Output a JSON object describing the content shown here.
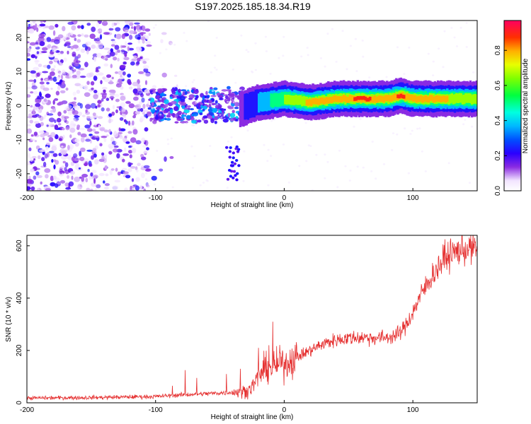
{
  "title": "S197.2025.185.18.34.R19",
  "chart_data": [
    {
      "type": "heatmap",
      "xlabel": "Height of straight line (km)",
      "ylabel": "Frequency (Hz)",
      "xlim": [
        -200,
        150
      ],
      "ylim": [
        -25,
        25
      ],
      "x_ticks": [
        -200,
        -100,
        0,
        100
      ],
      "y_ticks": [
        20,
        10,
        0,
        -10,
        -20
      ],
      "grid": false,
      "colorbar": {
        "label": "Normalized spectral amplitude",
        "range": [
          0.0,
          0.97
        ],
        "ticks": [
          0.0,
          0.2,
          0.4,
          0.6,
          0.8
        ],
        "colormap": "rainbow (violet to red)"
      },
      "features": {
        "noise_region_x": [
          -200,
          -105
        ],
        "noise_frequency_span": [
          -25,
          25
        ],
        "transition_region_x": [
          -105,
          -30
        ],
        "transition_frequency_span": [
          -5,
          5
        ],
        "tail_feature": {
          "x": [
            -45,
            -35
          ],
          "frequency": [
            -22,
            -12
          ]
        },
        "ridge": {
          "x": [
            -35,
            -20,
            0,
            20,
            40,
            60,
            80,
            90,
            100,
            120,
            150
          ],
          "frequency": [
            -1,
            1,
            2,
            1,
            2,
            2,
            2,
            3,
            2,
            2,
            2
          ],
          "amplitude": [
            0.2,
            0.4,
            0.7,
            0.85,
            0.9,
            0.93,
            0.9,
            0.93,
            0.9,
            0.85,
            0.7
          ]
        }
      }
    },
    {
      "type": "line",
      "xlabel": "Height of straight line (km)",
      "ylabel": "SNR (10 * v/v)",
      "xlim": [
        -200,
        150
      ],
      "ylim": [
        0,
        640
      ],
      "x_ticks": [
        -200,
        -100,
        0,
        100
      ],
      "y_ticks": [
        0,
        200,
        400,
        600
      ],
      "grid": false,
      "color": "#e53030",
      "series": [
        {
          "trend_x": [
            -200,
            -150,
            -100,
            -80,
            -60,
            -40,
            -30,
            -25,
            -20,
            -15,
            -10,
            -5,
            0,
            10,
            20,
            30,
            40,
            50,
            60,
            70,
            80,
            85,
            90,
            95,
            100,
            105,
            110,
            115,
            120,
            125,
            130,
            135,
            140,
            145,
            150
          ],
          "trend_y": [
            18,
            20,
            24,
            30,
            35,
            40,
            45,
            60,
            100,
            130,
            135,
            145,
            150,
            175,
            200,
            225,
            240,
            248,
            250,
            248,
            250,
            255,
            265,
            300,
            345,
            400,
            445,
            485,
            520,
            550,
            570,
            580,
            585,
            590,
            590
          ],
          "spikes": [
            {
              "x": -87,
              "y": 65
            },
            {
              "x": -77,
              "y": 125
            },
            {
              "x": -68,
              "y": 95
            },
            {
              "x": -45,
              "y": 110
            },
            {
              "x": -34,
              "y": 130
            },
            {
              "x": -20,
              "y": 210
            },
            {
              "x": -12,
              "y": 220
            },
            {
              "x": -9,
              "y": 310
            },
            {
              "x": -3,
              "y": 190
            },
            {
              "x": 125,
              "y": 625
            }
          ]
        }
      ]
    }
  ]
}
